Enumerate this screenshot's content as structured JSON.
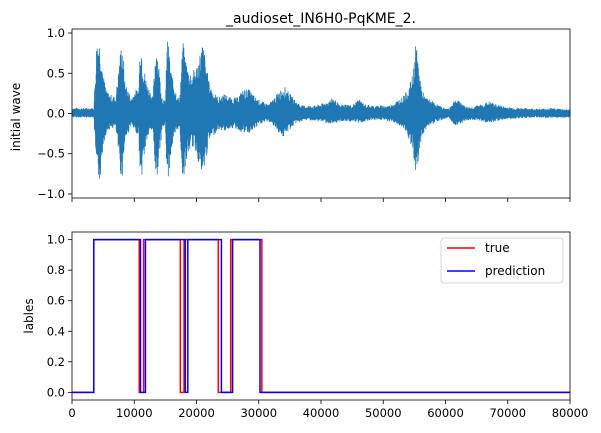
{
  "chart_data": [
    {
      "type": "line",
      "title": "_audioset_IN6H0-PqKME_2.",
      "xlabel": "",
      "ylabel": "initial wave",
      "xlim": [
        0,
        80000
      ],
      "ylim": [
        -1.05,
        1.05
      ],
      "xticks": [
        0,
        10000,
        20000,
        30000,
        40000,
        50000,
        60000,
        70000,
        80000
      ],
      "xticks_labeled": false,
      "yticks": [
        -1.0,
        -0.5,
        0.0,
        0.5,
        1.0
      ],
      "ytick_labels": [
        "−1.0",
        "−0.5",
        "0.0",
        "0.5",
        "1.0"
      ],
      "grid": false,
      "color": "#1f77b4",
      "envelope": {
        "x": [
          0,
          3500,
          4000,
          4300,
          4600,
          5000,
          5500,
          6000,
          7000,
          8000,
          8500,
          9500,
          10200,
          10700,
          11000,
          11500,
          12000,
          12500,
          13000,
          13500,
          14500,
          15000,
          15300,
          16000,
          17000,
          17300,
          17800,
          18500,
          19200,
          20000,
          21000,
          22000,
          22500,
          23500,
          24500,
          25500,
          26500,
          27500,
          28500,
          29500,
          30500,
          31500,
          32000,
          33000,
          34000,
          35000,
          36000,
          37000,
          38000,
          39000,
          40000,
          41000,
          42000,
          43000,
          44000,
          45000,
          46000,
          47000,
          48000,
          49000,
          50000,
          51000,
          52000,
          53000,
          54000,
          54800,
          55200,
          55800,
          56200,
          56800,
          57500,
          58500,
          59500,
          60500,
          61500,
          62500,
          63000,
          64000,
          65000,
          66000,
          67000,
          68000,
          69000,
          70000,
          72000,
          75000,
          77000,
          80000
        ],
        "upper": [
          0.07,
          0.07,
          0.97,
          0.95,
          0.9,
          0.5,
          0.3,
          0.25,
          0.2,
          0.95,
          0.4,
          0.2,
          0.3,
          0.3,
          1.0,
          0.6,
          0.4,
          0.3,
          0.2,
          0.95,
          0.2,
          0.15,
          1.0,
          0.5,
          0.2,
          0.2,
          0.9,
          0.6,
          0.5,
          0.6,
          0.9,
          0.4,
          0.3,
          0.2,
          0.25,
          0.2,
          0.2,
          0.3,
          0.3,
          0.2,
          0.15,
          0.12,
          0.15,
          0.25,
          0.35,
          0.25,
          0.15,
          0.1,
          0.1,
          0.1,
          0.12,
          0.15,
          0.2,
          0.1,
          0.12,
          0.1,
          0.18,
          0.12,
          0.1,
          0.1,
          0.1,
          0.1,
          0.15,
          0.2,
          0.3,
          0.5,
          0.9,
          0.55,
          0.3,
          0.2,
          0.18,
          0.12,
          0.08,
          0.06,
          0.18,
          0.15,
          0.1,
          0.08,
          0.1,
          0.12,
          0.15,
          0.12,
          0.1,
          0.08,
          0.07,
          0.06,
          0.07,
          0.05
        ],
        "lower": [
          -0.05,
          -0.05,
          -0.88,
          -0.85,
          -0.8,
          -0.4,
          -0.25,
          -0.2,
          -0.18,
          -0.88,
          -0.35,
          -0.15,
          -0.25,
          -0.25,
          -0.93,
          -0.6,
          -0.35,
          -0.25,
          -0.2,
          -0.9,
          -0.2,
          -0.15,
          -0.93,
          -0.45,
          -0.2,
          -0.2,
          -0.85,
          -0.55,
          -0.4,
          -0.5,
          -0.85,
          -0.35,
          -0.3,
          -0.2,
          -0.22,
          -0.18,
          -0.2,
          -0.25,
          -0.25,
          -0.18,
          -0.12,
          -0.1,
          -0.12,
          -0.22,
          -0.3,
          -0.2,
          -0.12,
          -0.1,
          -0.08,
          -0.1,
          -0.1,
          -0.12,
          -0.15,
          -0.1,
          -0.1,
          -0.1,
          -0.12,
          -0.1,
          -0.08,
          -0.08,
          -0.08,
          -0.1,
          -0.12,
          -0.18,
          -0.3,
          -0.5,
          -0.85,
          -0.5,
          -0.3,
          -0.2,
          -0.15,
          -0.1,
          -0.08,
          -0.05,
          -0.15,
          -0.12,
          -0.1,
          -0.08,
          -0.08,
          -0.1,
          -0.12,
          -0.1,
          -0.08,
          -0.07,
          -0.06,
          -0.05,
          -0.06,
          -0.05
        ]
      }
    },
    {
      "type": "line",
      "title": "",
      "xlabel": "",
      "ylabel": "lables",
      "xlim": [
        0,
        80000
      ],
      "ylim": [
        -0.05,
        1.05
      ],
      "xticks": [
        0,
        10000,
        20000,
        30000,
        40000,
        50000,
        60000,
        70000,
        80000
      ],
      "xtick_labels": [
        "0",
        "10000",
        "20000",
        "30000",
        "40000",
        "50000",
        "60000",
        "70000",
        "80000"
      ],
      "yticks": [
        0.0,
        0.2,
        0.4,
        0.6,
        0.8,
        1.0
      ],
      "ytick_labels": [
        "0.0",
        "0.2",
        "0.4",
        "0.6",
        "0.8",
        "1.0"
      ],
      "grid": false,
      "legend": "top-right",
      "series": [
        {
          "name": "true",
          "color": "#ff0000",
          "x": [
            0,
            3500,
            3500,
            10800,
            10800,
            11500,
            11500,
            17400,
            17400,
            18000,
            18000,
            23500,
            23500,
            25500,
            25500,
            30500,
            30500,
            80000
          ],
          "y": [
            0,
            0,
            1,
            1,
            0,
            0,
            1,
            1,
            0,
            0,
            1,
            1,
            0,
            0,
            1,
            1,
            0,
            0
          ]
        },
        {
          "name": "prediction",
          "color": "#0000ff",
          "x": [
            0,
            3500,
            3500,
            11000,
            11000,
            11800,
            11800,
            18200,
            18200,
            18600,
            18600,
            24000,
            24000,
            25800,
            25800,
            30200,
            30200,
            80000
          ],
          "y": [
            0,
            0,
            1,
            1,
            0,
            0,
            1,
            1,
            0,
            0,
            1,
            1,
            0,
            0,
            1,
            1,
            0,
            0
          ]
        }
      ]
    }
  ]
}
